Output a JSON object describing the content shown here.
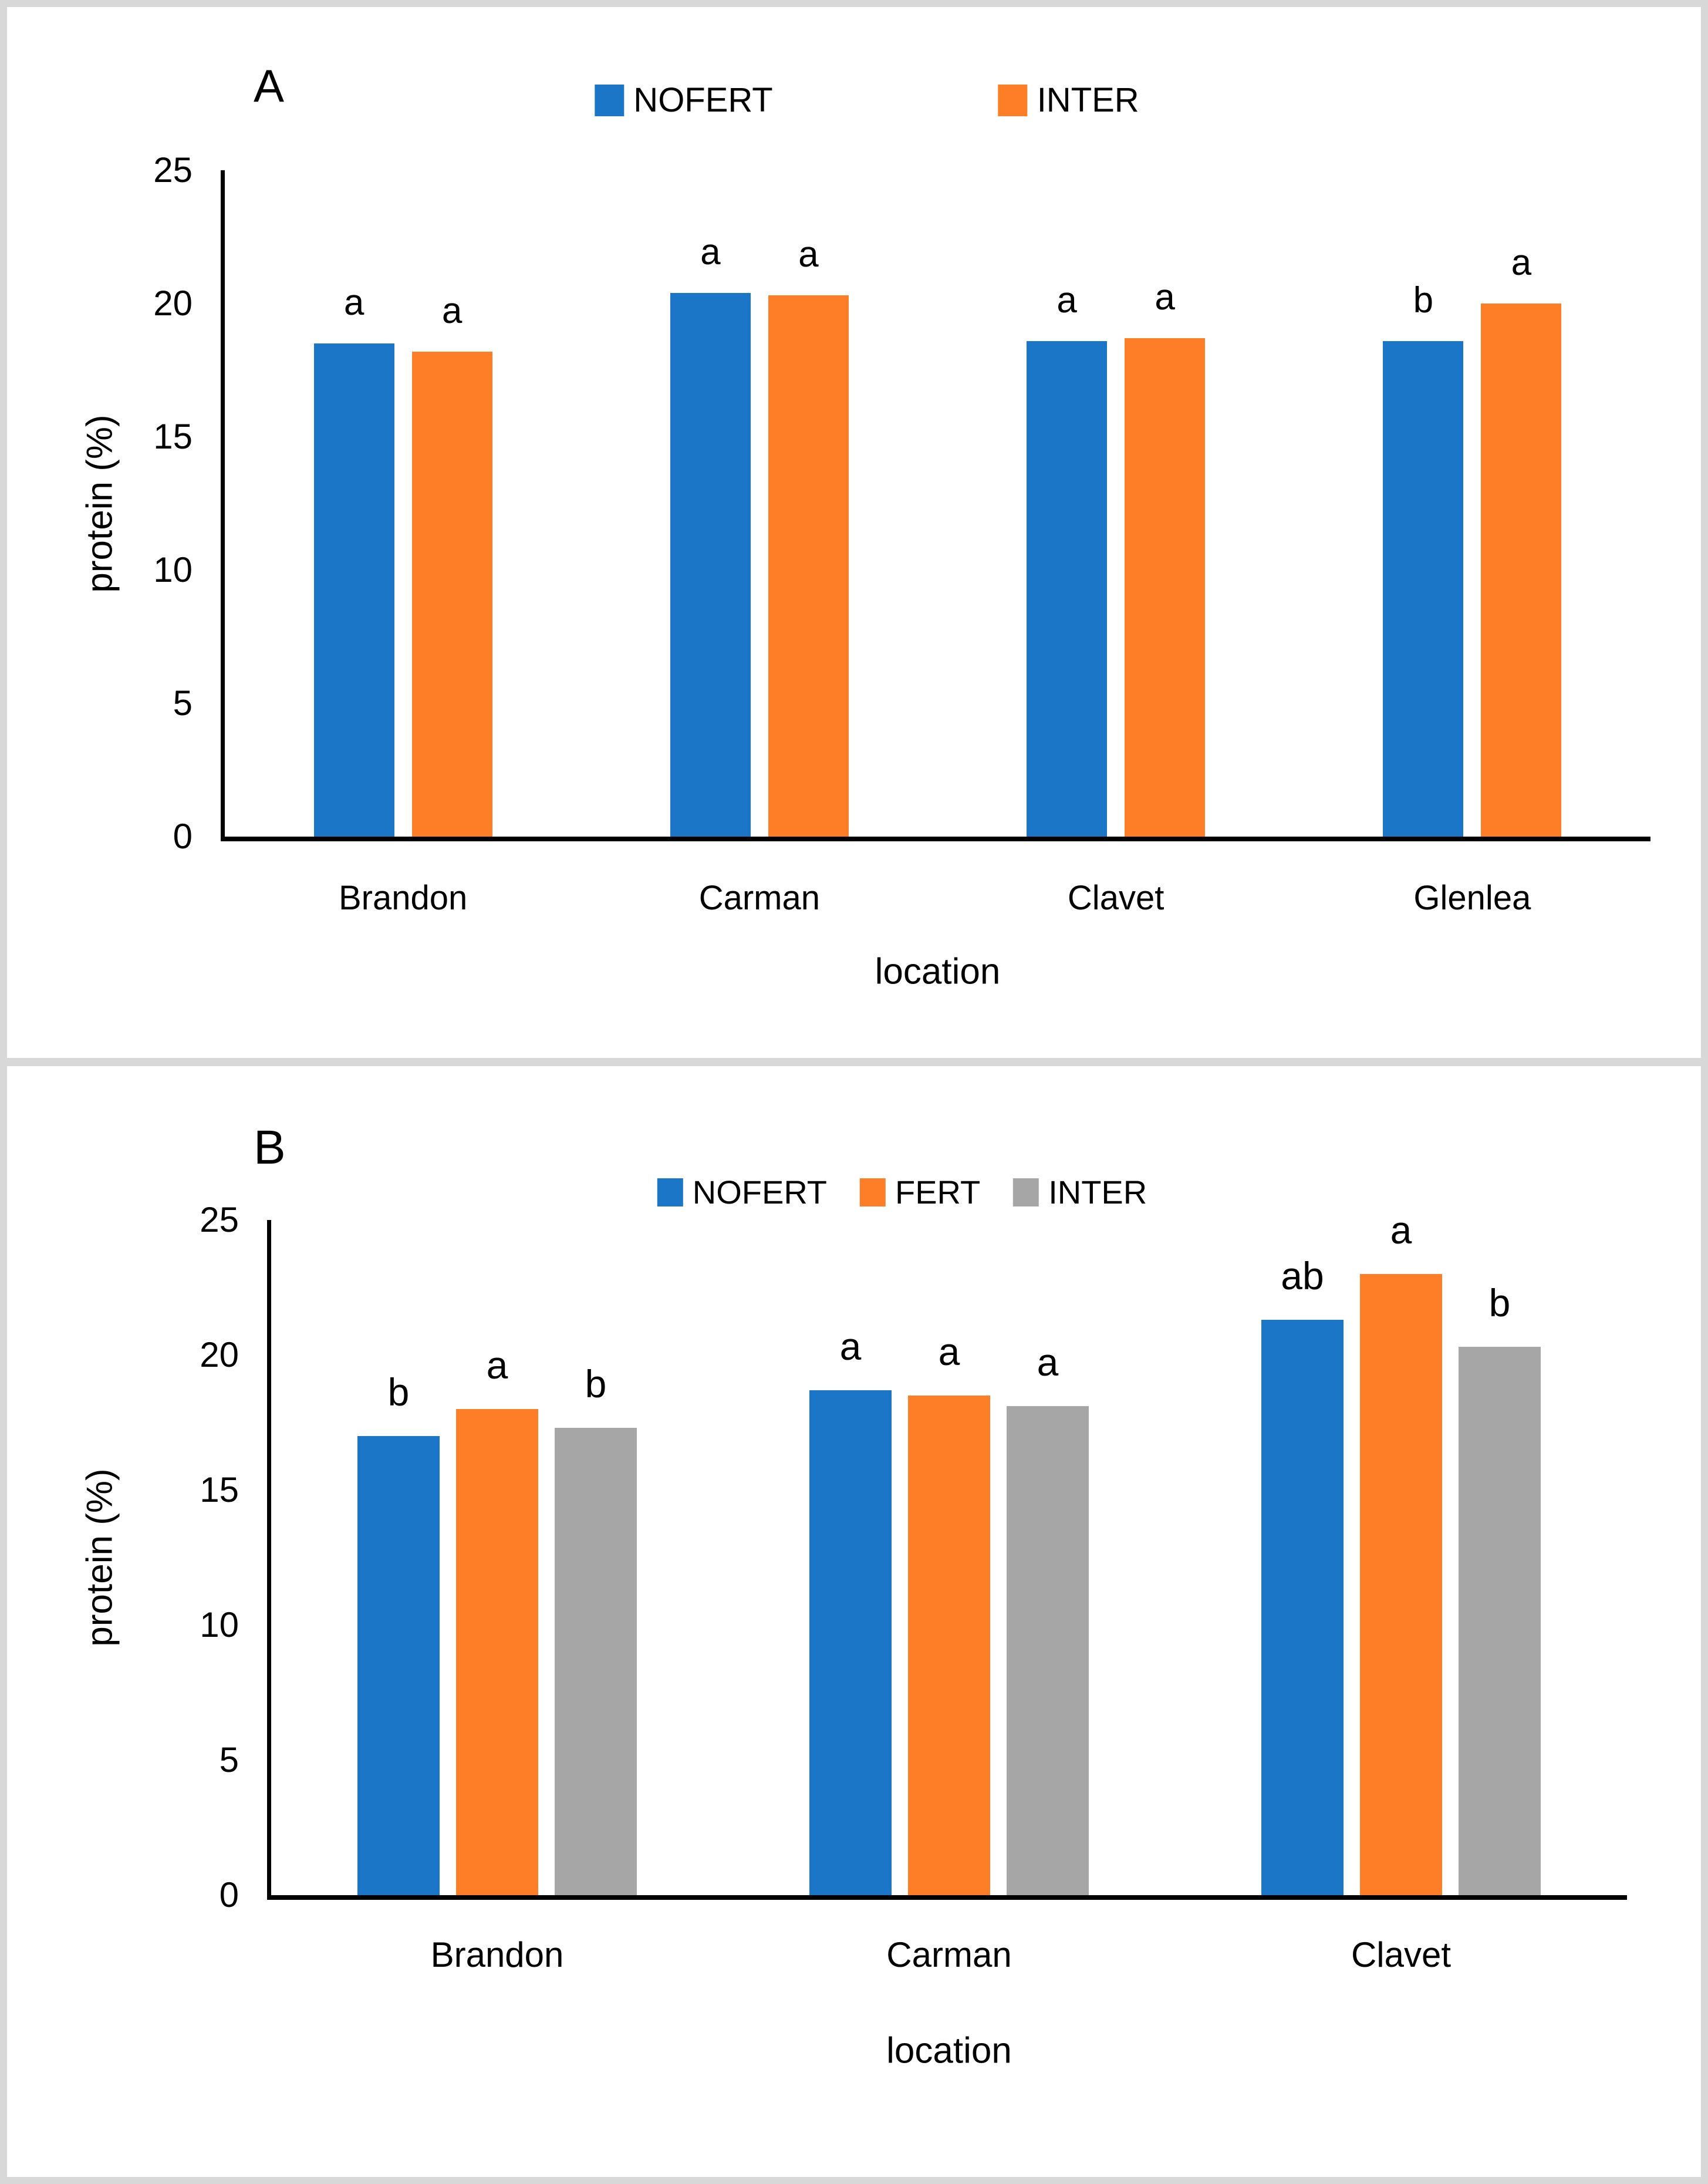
{
  "figure": {
    "background": "#FFFFFF",
    "frame_color": "#D8D8D8",
    "colors": {
      "blue": "#1B76C8",
      "orange": "#FD7E27",
      "gray": "#A6A6A6"
    }
  },
  "chart_data": [
    {
      "type": "bar",
      "panel_label": "A",
      "xlabel": "location",
      "ylabel": "protein (%)",
      "ylim": [
        0,
        25
      ],
      "y_ticks": [
        0,
        5,
        10,
        15,
        20,
        25
      ],
      "grid": false,
      "legend_position": "top",
      "categories": [
        "Brandon",
        "Carman",
        "Clavet",
        "Glenlea"
      ],
      "series": [
        {
          "name": "NOFERT",
          "color": "blue",
          "values": [
            18.5,
            20.4,
            18.6,
            18.6
          ],
          "sig_letters": [
            "a",
            "a",
            "a",
            "b"
          ]
        },
        {
          "name": "INTER",
          "color": "orange",
          "values": [
            18.2,
            20.3,
            18.7,
            20.0
          ],
          "sig_letters": [
            "a",
            "a",
            "a",
            "a"
          ]
        }
      ]
    },
    {
      "type": "bar",
      "panel_label": "B",
      "xlabel": "location",
      "ylabel": "protein (%)",
      "ylim": [
        0,
        25
      ],
      "y_ticks": [
        0,
        5,
        10,
        15,
        20,
        25
      ],
      "grid": false,
      "legend_position": "top",
      "categories": [
        "Brandon",
        "Carman",
        "Clavet"
      ],
      "series": [
        {
          "name": "NOFERT",
          "color": "blue",
          "values": [
            17.0,
            18.7,
            21.3
          ],
          "sig_letters": [
            "b",
            "a",
            "ab"
          ]
        },
        {
          "name": "FERT",
          "color": "orange",
          "values": [
            18.0,
            18.5,
            23.0
          ],
          "sig_letters": [
            "a",
            "a",
            "a"
          ]
        },
        {
          "name": "INTER",
          "color": "gray",
          "values": [
            17.3,
            18.1,
            20.3
          ],
          "sig_letters": [
            "b",
            "a",
            "b"
          ]
        }
      ]
    }
  ]
}
